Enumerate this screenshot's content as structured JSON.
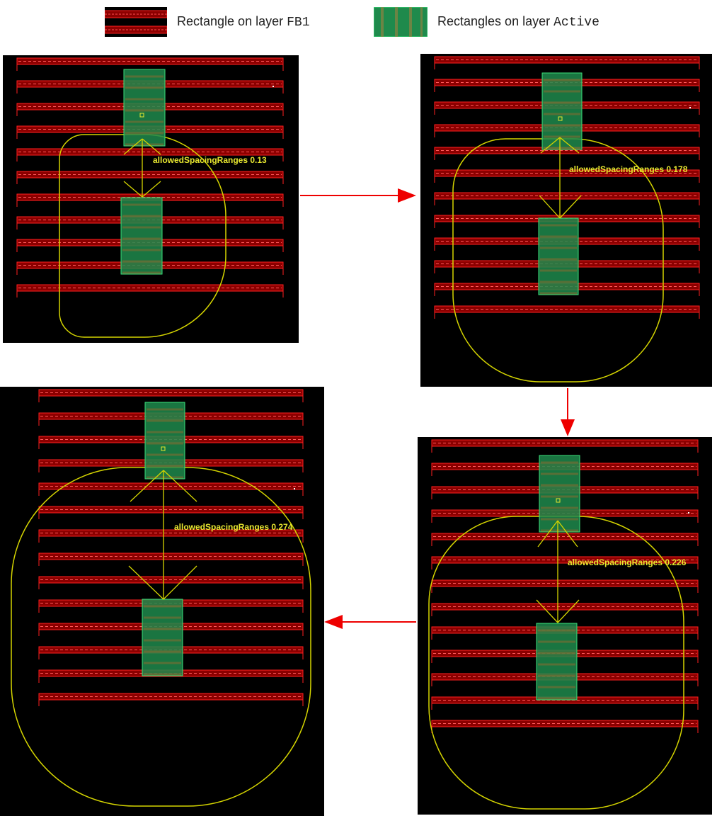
{
  "legend": [
    {
      "text": "Rectangle on layer ",
      "layer": "FB1",
      "swatch_icon": "fb1-layer-swatch-icon"
    },
    {
      "text": "Rectangles on layer ",
      "layer": "Active",
      "swatch_icon": "active-layer-swatch-icon"
    }
  ],
  "panels": [
    {
      "id": "step-1",
      "label": "allowedSpacingRanges 0.13"
    },
    {
      "id": "step-2",
      "label": "allowedSpacingRanges 0.178"
    },
    {
      "id": "step-3",
      "label": "allowedSpacingRanges 0.226"
    },
    {
      "id": "step-4",
      "label": "allowedSpacingRanges 0.274"
    }
  ],
  "colors": {
    "fb1_fill": "#8c0000",
    "fb1_edge": "#ff2020",
    "active_fill": "#1f8a4c",
    "active_edge": "#3be07a",
    "halo": "#d4d400",
    "annotation": "#e8e830",
    "flow_arrow": "#ee0000",
    "canvas": "#000000"
  }
}
